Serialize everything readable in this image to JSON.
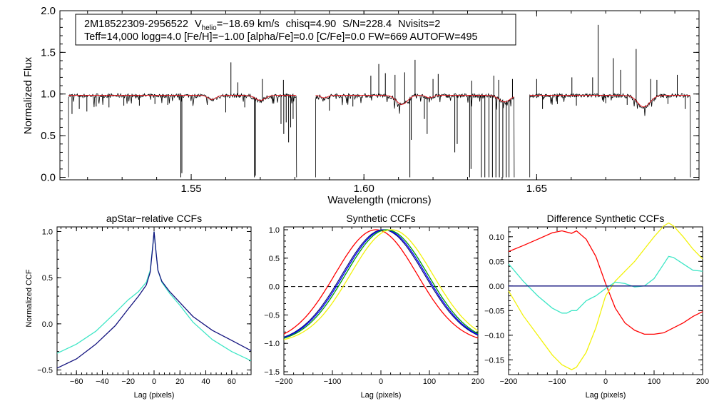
{
  "info_box": {
    "star_id": "2M18522309-2956522",
    "v_symbol": "V",
    "v_sub": "helio",
    "v_value": "=−18.69 km/s",
    "chisq": "chisq=4.90",
    "snr": "S/N=228.4",
    "nvisits": "Nvisits=2",
    "params_line": "Teff=14,000 logg=4.0 [Fe/H]=−1.00 [alpha/Fe]=0.0 [C/Fe]=0.0 FW=669 AUTOFW=495"
  },
  "colors": {
    "observed": "#000000",
    "model": "#e8141c",
    "cyan": "#3ee6c6",
    "navy": "#12127e",
    "blue": "#0000ff",
    "green": "#00a000",
    "red": "#ff0000",
    "yellow": "#f2f20a"
  },
  "chart_data": [
    {
      "type": "line",
      "title": "",
      "xlabel": "Wavelength (microns)",
      "ylabel": "Normalized Flux",
      "xlim": [
        1.512,
        1.697
      ],
      "ylim": [
        -0.03,
        2.0
      ],
      "xticks": [
        1.55,
        1.6,
        1.65
      ],
      "xtick_labels": [
        "1.55",
        "1.60",
        "1.65"
      ],
      "yticks": [
        0.0,
        0.5,
        1.0,
        1.5,
        2.0
      ],
      "ytick_labels": [
        "0.0",
        "0.5",
        "1.0",
        "1.5",
        "2.0"
      ],
      "chips": [
        [
          1.5145,
          1.5805
        ],
        [
          1.586,
          1.6435
        ],
        [
          1.648,
          1.6945
        ]
      ],
      "model_level": 0.98,
      "broad_features": [
        {
          "center": 1.556,
          "depth": 0.05,
          "width": 0.0012
        },
        {
          "center": 1.57,
          "depth": 0.06,
          "width": 0.0015
        },
        {
          "center": 1.5885,
          "depth": 0.03,
          "width": 0.001
        },
        {
          "center": 1.611,
          "depth": 0.11,
          "width": 0.0016
        },
        {
          "center": 1.619,
          "depth": 0.03,
          "width": 0.001
        },
        {
          "center": 1.6407,
          "depth": 0.08,
          "width": 0.0016
        },
        {
          "center": 1.681,
          "depth": 0.14,
          "width": 0.0018
        }
      ],
      "emission_spikes": [
        {
          "x": 1.5615,
          "y": 1.38
        },
        {
          "x": 1.5635,
          "y": 1.14
        },
        {
          "x": 1.5706,
          "y": 1.18
        },
        {
          "x": 1.5767,
          "y": 1.17
        },
        {
          "x": 1.6043,
          "y": 1.36
        },
        {
          "x": 1.602,
          "y": 1.22
        },
        {
          "x": 1.6062,
          "y": 1.25
        },
        {
          "x": 1.609,
          "y": 1.23
        },
        {
          "x": 1.6118,
          "y": 1.26
        },
        {
          "x": 1.6148,
          "y": 1.41
        },
        {
          "x": 1.62,
          "y": 1.18
        },
        {
          "x": 1.6215,
          "y": 1.24
        },
        {
          "x": 1.6312,
          "y": 1.16
        },
        {
          "x": 1.6376,
          "y": 1.22
        },
        {
          "x": 1.639,
          "y": 1.17
        },
        {
          "x": 1.643,
          "y": 1.18
        },
        {
          "x": 1.65,
          "y": 1.18
        },
        {
          "x": 1.6602,
          "y": 1.2
        },
        {
          "x": 1.6662,
          "y": 1.2
        },
        {
          "x": 1.6678,
          "y": 1.83
        },
        {
          "x": 1.6722,
          "y": 1.43
        },
        {
          "x": 1.6743,
          "y": 1.29
        },
        {
          "x": 1.6788,
          "y": 1.54
        },
        {
          "x": 1.683,
          "y": 1.18
        },
        {
          "x": 1.6848,
          "y": 1.17
        },
        {
          "x": 1.6907,
          "y": 1.23
        }
      ],
      "absorption_spikes": [
        {
          "x": 1.5155,
          "y": 0.76
        },
        {
          "x": 1.5176,
          "y": 0.82
        },
        {
          "x": 1.5198,
          "y": 0.79
        },
        {
          "x": 1.5225,
          "y": 0.85
        },
        {
          "x": 1.5262,
          "y": 0.84
        },
        {
          "x": 1.5305,
          "y": 0.86
        },
        {
          "x": 1.535,
          "y": 0.86
        },
        {
          "x": 1.5395,
          "y": 0.88
        },
        {
          "x": 1.5432,
          "y": 0.87
        },
        {
          "x": 1.547,
          "y": 0.0
        },
        {
          "x": 1.5473,
          "y": 0.05
        },
        {
          "x": 1.56,
          "y": 0.78
        },
        {
          "x": 1.5655,
          "y": 0.84
        },
        {
          "x": 1.5683,
          "y": 0.0
        },
        {
          "x": 1.5686,
          "y": 0.02
        },
        {
          "x": 1.576,
          "y": 0.64
        },
        {
          "x": 1.5768,
          "y": 0.52
        },
        {
          "x": 1.5775,
          "y": 0.66
        },
        {
          "x": 1.5782,
          "y": 0.42
        },
        {
          "x": 1.5788,
          "y": 0.6
        },
        {
          "x": 1.5795,
          "y": 0.7
        },
        {
          "x": 1.59,
          "y": 0.8
        },
        {
          "x": 1.5968,
          "y": 0.85
        },
        {
          "x": 1.6133,
          "y": 0.0
        },
        {
          "x": 1.6137,
          "y": 0.45
        },
        {
          "x": 1.6175,
          "y": 0.7
        },
        {
          "x": 1.6183,
          "y": 0.52
        },
        {
          "x": 1.6263,
          "y": 0.3
        },
        {
          "x": 1.627,
          "y": 0.4
        },
        {
          "x": 1.6306,
          "y": 0.0
        },
        {
          "x": 1.631,
          "y": 0.1
        },
        {
          "x": 1.634,
          "y": 0.0
        },
        {
          "x": 1.635,
          "y": 0.0
        },
        {
          "x": 1.6362,
          "y": 0.0
        },
        {
          "x": 1.6372,
          "y": 0.0
        },
        {
          "x": 1.6382,
          "y": 0.0
        },
        {
          "x": 1.6392,
          "y": 0.0
        },
        {
          "x": 1.6402,
          "y": 0.0
        },
        {
          "x": 1.6412,
          "y": 0.0
        },
        {
          "x": 1.642,
          "y": 0.0
        },
        {
          "x": 1.6517,
          "y": 0.82
        },
        {
          "x": 1.656,
          "y": 0.88
        },
        {
          "x": 1.6615,
          "y": 0.86
        },
        {
          "x": 1.67,
          "y": 0.89
        },
        {
          "x": 1.6762,
          "y": 0.87
        },
        {
          "x": 1.688,
          "y": 0.88
        },
        {
          "x": 1.693,
          "y": 0.82
        }
      ]
    },
    {
      "type": "line",
      "title": "apStar−relative CCFs",
      "xlabel": "Lag (pixels)",
      "ylabel": "Normalized CCF",
      "xlim": [
        -75,
        75
      ],
      "ylim": [
        -0.55,
        1.05
      ],
      "xticks": [
        -60,
        -40,
        -20,
        0,
        20,
        40,
        60
      ],
      "xtick_labels": [
        "−60",
        "−40",
        "−20",
        "0",
        "20",
        "40",
        "60"
      ],
      "yticks": [
        -0.5,
        0.0,
        0.5,
        1.0
      ],
      "ytick_labels": [
        "−0.5",
        "0.0",
        "0.5",
        "1.0"
      ],
      "series": [
        {
          "name": "cyan",
          "x": [
            -75,
            -60,
            -45,
            -30,
            -20,
            -12,
            -6,
            -3,
            -1,
            0,
            1,
            3,
            6,
            12,
            20,
            30,
            45,
            60,
            75
          ],
          "y": [
            -0.32,
            -0.22,
            -0.08,
            0.12,
            0.26,
            0.35,
            0.45,
            0.58,
            0.85,
            1.0,
            0.85,
            0.58,
            0.45,
            0.33,
            0.2,
            0.02,
            -0.17,
            -0.3,
            -0.4
          ]
        },
        {
          "name": "navy",
          "x": [
            -75,
            -60,
            -45,
            -30,
            -20,
            -12,
            -6,
            -3,
            -1,
            0,
            1,
            3,
            6,
            12,
            20,
            30,
            45,
            60,
            75
          ],
          "y": [
            -0.48,
            -0.38,
            -0.22,
            -0.02,
            0.16,
            0.3,
            0.42,
            0.56,
            0.84,
            1.0,
            0.85,
            0.58,
            0.46,
            0.35,
            0.23,
            0.08,
            -0.07,
            -0.18,
            -0.29
          ]
        }
      ]
    },
    {
      "type": "line",
      "title": "Synthetic CCFs",
      "xlabel": "Lag (pixels)",
      "ylabel": "",
      "xlim": [
        -200,
        200
      ],
      "ylim": [
        -1.55,
        1.05
      ],
      "xticks": [
        -200,
        -100,
        0,
        100,
        200
      ],
      "xtick_labels": [
        "−200",
        "−100",
        "0",
        "100",
        "200"
      ],
      "yticks": [
        -1.5,
        -1.0,
        -0.5,
        0.0,
        0.5,
        1.0
      ],
      "ytick_labels": [
        "−1.5",
        "−1.0",
        "−0.5",
        "0.0",
        "0.5",
        "1.0"
      ],
      "zero_line": 0.0,
      "series": [
        {
          "name": "red",
          "center": -10,
          "halfwidth": 100
        },
        {
          "name": "navy",
          "center": 5,
          "halfwidth": 100
        },
        {
          "name": "blue",
          "center": 8,
          "halfwidth": 100
        },
        {
          "name": "green",
          "center": 12,
          "halfwidth": 100
        },
        {
          "name": "yellow",
          "center": 22,
          "halfwidth": 100
        }
      ]
    },
    {
      "type": "line",
      "title": "Difference Synthetic CCFs",
      "xlabel": "Lag (pixels)",
      "ylabel": "",
      "xlim": [
        -200,
        200
      ],
      "ylim": [
        -0.18,
        0.12
      ],
      "xticks": [
        -200,
        -100,
        0,
        100,
        200
      ],
      "xtick_labels": [
        "−200",
        "−100",
        "0",
        "100",
        "200"
      ],
      "yticks": [
        -0.15,
        -0.1,
        -0.05,
        0.0,
        0.05,
        0.1
      ],
      "ytick_labels": [
        "−0.15",
        "−0.10",
        "−0.05",
        "0.00",
        "0.05",
        "0.10"
      ],
      "series": [
        {
          "name": "red",
          "x": [
            -200,
            -170,
            -140,
            -110,
            -90,
            -70,
            -60,
            -40,
            -20,
            0,
            20,
            40,
            60,
            80,
            100,
            120,
            140,
            160,
            180,
            200
          ],
          "y": [
            0.07,
            0.082,
            0.095,
            0.108,
            0.112,
            0.107,
            0.112,
            0.095,
            0.06,
            0.005,
            -0.045,
            -0.075,
            -0.09,
            -0.098,
            -0.098,
            -0.095,
            -0.085,
            -0.075,
            -0.062,
            -0.052
          ]
        },
        {
          "name": "yellow",
          "x": [
            -200,
            -170,
            -140,
            -110,
            -90,
            -70,
            -60,
            -40,
            -20,
            0,
            20,
            40,
            60,
            80,
            100,
            120,
            130,
            140,
            160,
            180,
            200
          ],
          "y": [
            -0.01,
            -0.06,
            -0.1,
            -0.14,
            -0.16,
            -0.17,
            -0.165,
            -0.135,
            -0.085,
            -0.02,
            0.01,
            0.03,
            0.05,
            0.075,
            0.1,
            0.122,
            0.128,
            0.122,
            0.1,
            0.075,
            0.055
          ]
        },
        {
          "name": "cyan",
          "x": [
            -200,
            -170,
            -140,
            -110,
            -90,
            -80,
            -70,
            -60,
            -40,
            -30,
            -20,
            0,
            20,
            40,
            60,
            80,
            100,
            120,
            130,
            140,
            160,
            180,
            200
          ],
          "y": [
            0.045,
            0.01,
            -0.02,
            -0.045,
            -0.055,
            -0.055,
            -0.05,
            -0.05,
            -0.03,
            -0.025,
            -0.02,
            -0.005,
            0.008,
            0.005,
            -0.002,
            0.0,
            0.015,
            0.045,
            0.06,
            0.058,
            0.045,
            0.032,
            0.03
          ]
        },
        {
          "name": "navy",
          "x": [
            -200,
            200
          ],
          "y": [
            0.0,
            0.0
          ]
        }
      ]
    }
  ]
}
